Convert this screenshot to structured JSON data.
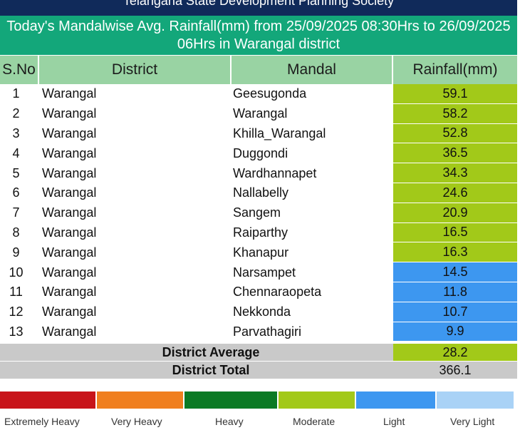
{
  "org_title": "Telangana State Development Planning Society",
  "title": "Today's Mandalwise Avg. Rainfall(mm) from 25/09/2025 08:30Hrs to 26/09/2025 06Hrs in Warangal district",
  "headers": {
    "sno": "S.No",
    "district": "District",
    "mandal": "Mandal",
    "rainfall": "Rainfall(mm)"
  },
  "rows": [
    {
      "sno": "1",
      "district": "Warangal",
      "mandal": "Geesugonda",
      "rainfall": "59.1",
      "category": "moderate"
    },
    {
      "sno": "2",
      "district": "Warangal",
      "mandal": "Warangal",
      "rainfall": "58.2",
      "category": "moderate"
    },
    {
      "sno": "3",
      "district": "Warangal",
      "mandal": "Khilla_Warangal",
      "rainfall": "52.8",
      "category": "moderate"
    },
    {
      "sno": "4",
      "district": "Warangal",
      "mandal": "Duggondi",
      "rainfall": "36.5",
      "category": "moderate"
    },
    {
      "sno": "5",
      "district": "Warangal",
      "mandal": "Wardhannapet",
      "rainfall": "34.3",
      "category": "moderate"
    },
    {
      "sno": "6",
      "district": "Warangal",
      "mandal": "Nallabelly",
      "rainfall": "24.6",
      "category": "moderate"
    },
    {
      "sno": "7",
      "district": "Warangal",
      "mandal": "Sangem",
      "rainfall": "20.9",
      "category": "moderate"
    },
    {
      "sno": "8",
      "district": "Warangal",
      "mandal": "Raiparthy",
      "rainfall": "16.5",
      "category": "moderate"
    },
    {
      "sno": "9",
      "district": "Warangal",
      "mandal": "Khanapur",
      "rainfall": "16.3",
      "category": "moderate"
    },
    {
      "sno": "10",
      "district": "Warangal",
      "mandal": "Narsampet",
      "rainfall": "14.5",
      "category": "light"
    },
    {
      "sno": "11",
      "district": "Warangal",
      "mandal": "Chennaraopeta",
      "rainfall": "11.8",
      "category": "light"
    },
    {
      "sno": "12",
      "district": "Warangal",
      "mandal": "Nekkonda",
      "rainfall": "10.7",
      "category": "light"
    },
    {
      "sno": "13",
      "district": "Warangal",
      "mandal": "Parvathagiri",
      "rainfall": "9.9",
      "category": "light"
    }
  ],
  "summary": {
    "average_label": "District Average",
    "average_value": "28.2",
    "total_label": "District Total",
    "total_value": "366.1"
  },
  "legend": [
    {
      "label": "Extremely Heavy",
      "color": "#c8141a"
    },
    {
      "label": "Very Heavy",
      "color": "#f07f1f"
    },
    {
      "label": "Heavy",
      "color": "#0b7a24"
    },
    {
      "label": "Moderate",
      "color": "#a2c919"
    },
    {
      "label": "Light",
      "color": "#3d97f0"
    },
    {
      "label": "Very Light",
      "color": "#a9d2f6"
    }
  ],
  "colors": {
    "moderate": "#a2c919",
    "light": "#3d97f0",
    "title_bg": "#13a77a",
    "header_bg": "#99d3a3",
    "org_bg": "#102a5a"
  }
}
